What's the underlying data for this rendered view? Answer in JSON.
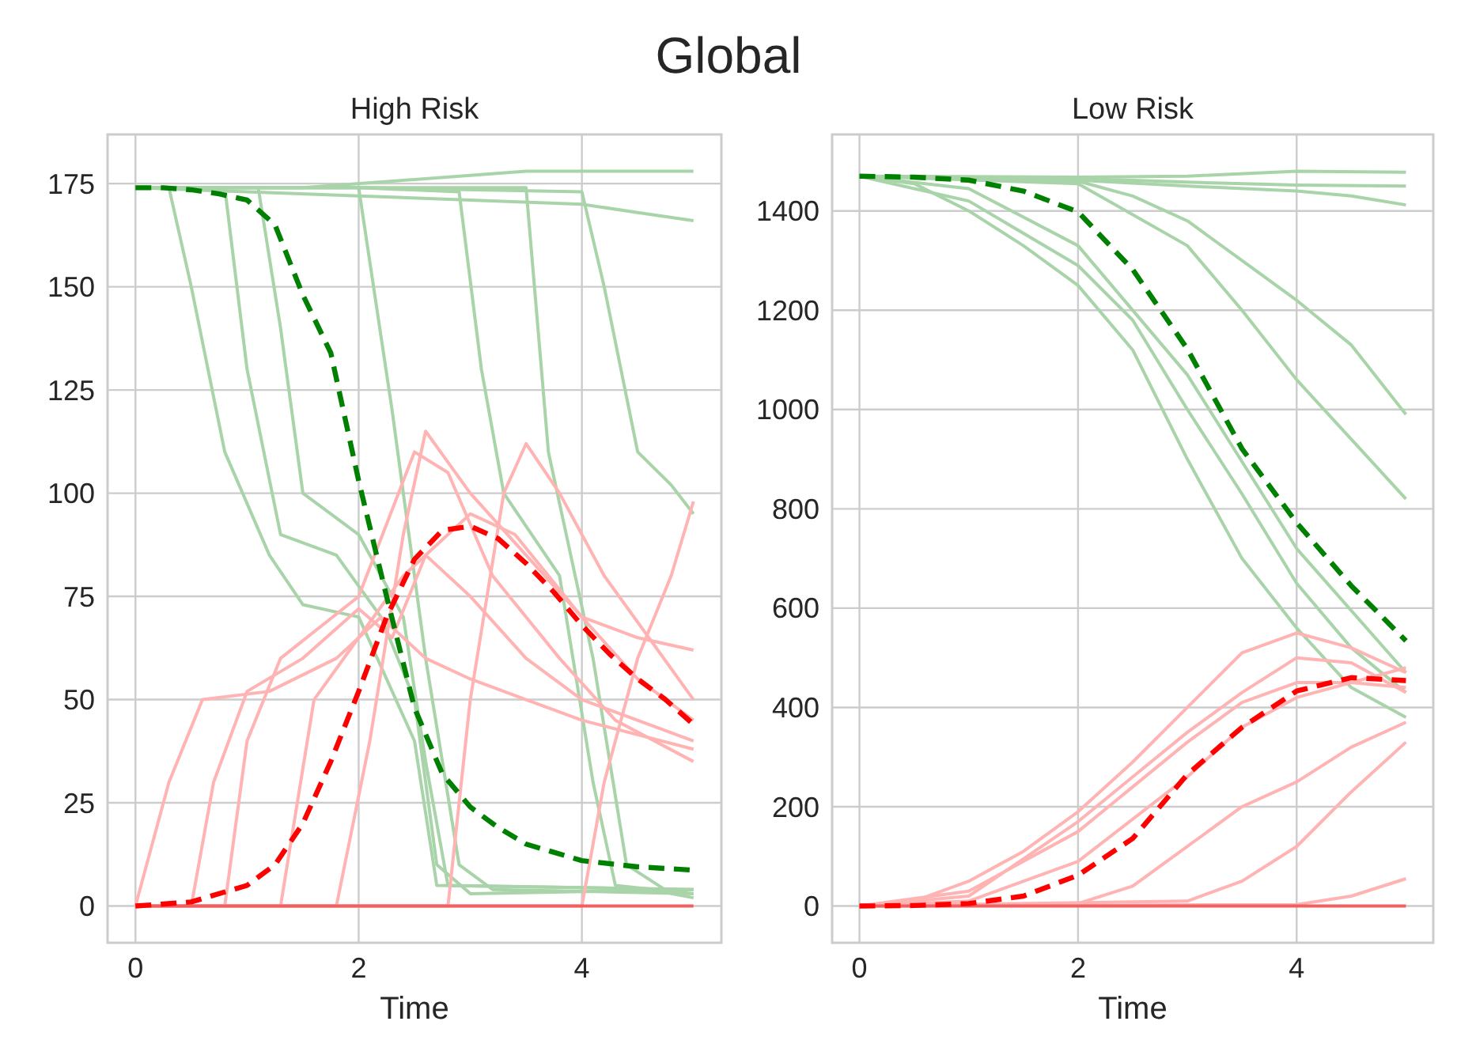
{
  "chart_data": [
    {
      "type": "line",
      "title": "High Risk",
      "xlabel": "Time",
      "annotations": [
        "Global"
      ],
      "xlim": [
        -0.25,
        5.25
      ],
      "xticks": [
        0,
        2,
        4
      ],
      "ylim": [
        -8.9,
        186.9
      ],
      "yticks": [
        0,
        25,
        50,
        75,
        100,
        125,
        150,
        175
      ],
      "grid": true,
      "series": [
        {
          "color": "#a9d4a9",
          "line_style": "solid",
          "x": [
            0,
            1.5,
            2.5,
            3.5,
            5
          ],
          "values": [
            174,
            174,
            176,
            178,
            178
          ]
        },
        {
          "color": "#a9d4a9",
          "line_style": "solid",
          "x": [
            0,
            1,
            2,
            3,
            4,
            4.5,
            5
          ],
          "values": [
            174,
            173,
            172,
            171,
            170,
            168,
            166
          ]
        },
        {
          "color": "#a9d4a9",
          "line_style": "solid",
          "x": [
            0,
            2,
            4,
            4.2,
            4.5,
            4.8,
            5
          ],
          "values": [
            174,
            174,
            173,
            150,
            110,
            102,
            95
          ]
        },
        {
          "color": "#a9d4a9",
          "line_style": "solid",
          "x": [
            0,
            2,
            2.9,
            3.1,
            3.3,
            3.8,
            4.1,
            4.3,
            5
          ],
          "values": [
            174,
            174,
            173,
            130,
            100,
            80,
            30,
            5,
            3
          ]
        },
        {
          "color": "#a9d4a9",
          "line_style": "solid",
          "x": [
            0,
            1.1,
            1.3,
            1.5,
            2,
            2.4,
            2.6,
            2.8,
            5
          ],
          "values": [
            174,
            174,
            140,
            100,
            90,
            70,
            35,
            5,
            4
          ]
        },
        {
          "color": "#a9d4a9",
          "line_style": "solid",
          "x": [
            0,
            0.3,
            0.5,
            0.8,
            1.2,
            1.5,
            2,
            2.5,
            2.7,
            5
          ],
          "values": [
            174,
            174,
            150,
            110,
            85,
            73,
            70,
            40,
            5,
            4
          ]
        },
        {
          "color": "#a9d4a9",
          "line_style": "solid",
          "x": [
            0,
            2,
            2.3,
            2.6,
            2.9,
            3.2,
            5
          ],
          "values": [
            174,
            174,
            120,
            60,
            10,
            4,
            3
          ]
        },
        {
          "color": "#a9d4a9",
          "line_style": "solid",
          "x": [
            0,
            0.8,
            1,
            1.3,
            1.8,
            2.2,
            2.5,
            2.7,
            3,
            5
          ],
          "values": [
            174,
            174,
            130,
            90,
            85,
            70,
            50,
            10,
            3,
            4
          ]
        },
        {
          "color": "#a9d4a9",
          "line_style": "solid",
          "x": [
            0,
            3.5,
            3.7,
            4.1,
            4.4,
            4.8,
            5
          ],
          "values": [
            174,
            174,
            110,
            60,
            10,
            3,
            2
          ]
        },
        {
          "color": "#ffb3b3",
          "line_style": "solid",
          "x": [
            0,
            0.3,
            0.6,
            1.2,
            1.8,
            2.2,
            2.6,
            3,
            3.5,
            4,
            5
          ],
          "values": [
            0,
            30,
            50,
            52,
            60,
            70,
            60,
            55,
            50,
            45,
            38
          ]
        },
        {
          "color": "#ffb3b3",
          "line_style": "solid",
          "x": [
            0,
            0.8,
            1,
            1.3,
            2,
            2.5,
            2.8,
            3.2,
            3.8,
            4.3,
            5
          ],
          "values": [
            0,
            0,
            40,
            60,
            75,
            110,
            105,
            80,
            60,
            45,
            35
          ]
        },
        {
          "color": "#ffb3b3",
          "line_style": "solid",
          "x": [
            0,
            1.8,
            2.1,
            2.4,
            2.6,
            3,
            3.5,
            4,
            4.5,
            5
          ],
          "values": [
            0,
            0,
            40,
            90,
            115,
            100,
            85,
            70,
            55,
            45
          ]
        },
        {
          "color": "#ffb3b3",
          "line_style": "solid",
          "x": [
            0,
            2.8,
            3,
            3.3,
            3.5,
            3.8,
            4.2,
            4.6,
            5
          ],
          "values": [
            0,
            0,
            50,
            100,
            112,
            100,
            80,
            65,
            50
          ]
        },
        {
          "color": "#ffb3b3",
          "line_style": "solid",
          "x": [
            0,
            0.5,
            0.7,
            1,
            1.5,
            2,
            2.3,
            2.6,
            3,
            3.5,
            4,
            5
          ],
          "values": [
            0,
            0,
            30,
            52,
            60,
            72,
            65,
            85,
            75,
            60,
            50,
            40
          ]
        },
        {
          "color": "#ffb3b3",
          "line_style": "solid",
          "x": [
            0,
            4,
            4.2,
            4.5,
            4.8,
            5
          ],
          "values": [
            0,
            0,
            30,
            60,
            80,
            98
          ]
        },
        {
          "color": "#ffb3b3",
          "line_style": "solid",
          "x": [
            0,
            1.3,
            1.6,
            2,
            2.4,
            3,
            3.4,
            4,
            4.5,
            5
          ],
          "values": [
            0,
            0,
            50,
            65,
            80,
            95,
            90,
            70,
            65,
            62
          ]
        },
        {
          "color": "#f06060",
          "line_style": "solid",
          "x": [
            0,
            5
          ],
          "values": [
            0,
            0
          ]
        },
        {
          "color": "#008000",
          "line_style": "dashed",
          "x": [
            0,
            0.25,
            0.5,
            0.75,
            1,
            1.25,
            1.5,
            1.75,
            2,
            2.25,
            2.5,
            2.75,
            3,
            3.25,
            3.5,
            3.75,
            4,
            4.5,
            5
          ],
          "values": [
            174,
            174,
            173.5,
            172.5,
            171,
            165,
            148,
            134,
            103,
            75,
            48,
            32,
            24,
            19,
            15,
            13,
            11,
            9.5,
            8.7
          ]
        },
        {
          "color": "#ff0000",
          "line_style": "dashed",
          "x": [
            0,
            0.5,
            1,
            1.25,
            1.5,
            1.75,
            2,
            2.25,
            2.5,
            2.75,
            3,
            3.25,
            3.5,
            3.75,
            4,
            4.25,
            4.5,
            4.75,
            5
          ],
          "values": [
            0,
            1,
            5,
            10,
            20,
            35,
            52,
            70,
            84,
            91,
            92,
            89,
            83,
            76,
            68,
            61,
            55,
            50,
            44
          ]
        }
      ]
    },
    {
      "type": "line",
      "title": "Low Risk",
      "xlabel": "Time",
      "xlim": [
        -0.25,
        5.25
      ],
      "xticks": [
        0,
        2,
        4
      ],
      "ylim": [
        -74,
        1554
      ],
      "yticks": [
        0,
        200,
        400,
        600,
        800,
        1000,
        1200,
        1400
      ],
      "grid": true,
      "series": [
        {
          "color": "#a9d4a9",
          "line_style": "solid",
          "x": [
            0,
            2,
            3,
            4,
            5
          ],
          "values": [
            1470,
            1468,
            1470,
            1480,
            1478
          ]
        },
        {
          "color": "#a9d4a9",
          "line_style": "solid",
          "x": [
            0,
            2,
            3,
            4,
            5
          ],
          "values": [
            1470,
            1465,
            1458,
            1452,
            1450
          ]
        },
        {
          "color": "#a9d4a9",
          "line_style": "solid",
          "x": [
            0,
            2,
            3,
            4,
            4.5,
            5
          ],
          "values": [
            1470,
            1462,
            1450,
            1440,
            1430,
            1412
          ]
        },
        {
          "color": "#a9d4a9",
          "line_style": "solid",
          "x": [
            0,
            2,
            2.5,
            3,
            3.5,
            4,
            4.5,
            5
          ],
          "values": [
            1470,
            1460,
            1430,
            1380,
            1300,
            1220,
            1130,
            990
          ]
        },
        {
          "color": "#a9d4a9",
          "line_style": "solid",
          "x": [
            0,
            2,
            3,
            3.5,
            4,
            4.5,
            5
          ],
          "values": [
            1470,
            1455,
            1330,
            1200,
            1060,
            940,
            820
          ]
        },
        {
          "color": "#a9d4a9",
          "line_style": "solid",
          "x": [
            0,
            0.5,
            1,
            1.5,
            2,
            2.5,
            3,
            3.5,
            4,
            4.5,
            5
          ],
          "values": [
            1470,
            1455,
            1400,
            1330,
            1250,
            1120,
            900,
            700,
            560,
            440,
            380
          ]
        },
        {
          "color": "#a9d4a9",
          "line_style": "solid",
          "x": [
            0,
            1,
            2,
            2.5,
            3,
            3.5,
            4,
            4.5,
            5
          ],
          "values": [
            1470,
            1420,
            1290,
            1180,
            1000,
            830,
            650,
            520,
            430
          ]
        },
        {
          "color": "#a9d4a9",
          "line_style": "solid",
          "x": [
            0,
            1,
            2,
            3,
            4,
            5
          ],
          "values": [
            1470,
            1445,
            1330,
            1070,
            720,
            470
          ]
        },
        {
          "color": "#ffb3b3",
          "line_style": "solid",
          "x": [
            0,
            0.5,
            1,
            1.5,
            2,
            2.5,
            3,
            3.5,
            4,
            4.5,
            5
          ],
          "values": [
            0,
            10,
            50,
            110,
            190,
            290,
            400,
            510,
            550,
            520,
            470
          ]
        },
        {
          "color": "#ffb3b3",
          "line_style": "solid",
          "x": [
            0,
            1,
            2,
            2.5,
            3,
            3.5,
            4,
            4.5,
            5
          ],
          "values": [
            0,
            30,
            150,
            240,
            330,
            410,
            450,
            450,
            440
          ]
        },
        {
          "color": "#ffb3b3",
          "line_style": "solid",
          "x": [
            0,
            1,
            2,
            3,
            3.5,
            4,
            5
          ],
          "values": [
            0,
            10,
            90,
            260,
            360,
            420,
            480
          ]
        },
        {
          "color": "#ffb3b3",
          "line_style": "solid",
          "x": [
            0,
            2,
            2.5,
            3,
            3.5,
            4,
            4.5,
            5
          ],
          "values": [
            0,
            5,
            40,
            120,
            200,
            250,
            320,
            370
          ]
        },
        {
          "color": "#ffb3b3",
          "line_style": "solid",
          "x": [
            0,
            3,
            3.5,
            4,
            4.5,
            5
          ],
          "values": [
            0,
            10,
            50,
            120,
            230,
            330
          ]
        },
        {
          "color": "#ffb3b3",
          "line_style": "solid",
          "x": [
            0,
            4,
            4.5,
            5
          ],
          "values": [
            0,
            3,
            20,
            55
          ]
        },
        {
          "color": "#ffb3b3",
          "line_style": "solid",
          "x": [
            0,
            1,
            2,
            2.5,
            3,
            3.5,
            4,
            4.5,
            5
          ],
          "values": [
            0,
            20,
            170,
            260,
            350,
            430,
            500,
            490,
            430
          ]
        },
        {
          "color": "#f06060",
          "line_style": "solid",
          "x": [
            0,
            5
          ],
          "values": [
            0,
            0
          ]
        },
        {
          "color": "#008000",
          "line_style": "dashed",
          "x": [
            0,
            0.5,
            1,
            1.5,
            2,
            2.5,
            3,
            3.5,
            4,
            4.5,
            5
          ],
          "values": [
            1470,
            1468,
            1462,
            1440,
            1398,
            1282,
            1122,
            921,
            772,
            645,
            534
          ]
        },
        {
          "color": "#ff0000",
          "line_style": "dashed",
          "x": [
            0,
            0.5,
            1,
            1.5,
            2,
            2.5,
            3,
            3.5,
            4,
            4.5,
            5
          ],
          "values": [
            0,
            1,
            5,
            20,
            62,
            136,
            265,
            360,
            433,
            460,
            454
          ]
        }
      ]
    }
  ]
}
